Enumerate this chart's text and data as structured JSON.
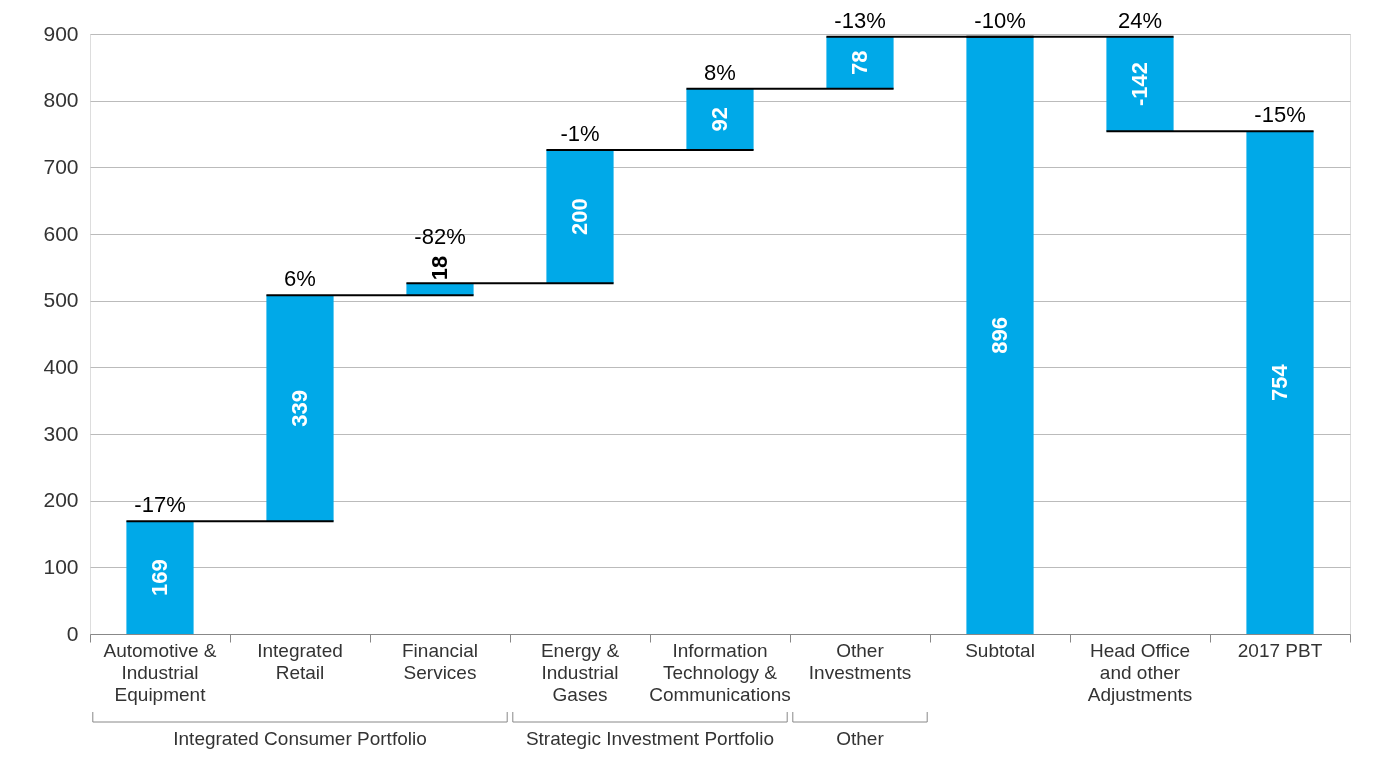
{
  "chart_data": {
    "type": "bar",
    "categories": [
      "Automotive & Industrial Equipment",
      "Integrated Retail",
      "Financial Services",
      "Energy & Industrial Gases",
      "Information Technology & Communications",
      "Other Investments",
      "Subtotal",
      "Head Office and other Adjustments",
      "2017 PBT"
    ],
    "values": [
      169,
      339,
      18,
      200,
      92,
      78,
      896,
      -142,
      754
    ],
    "base": [
      0,
      169,
      508,
      526,
      726,
      818,
      0,
      896,
      0
    ],
    "color": "#00a9e8",
    "data_labels": true,
    "ylim": [
      0,
      900
    ],
    "yticks": [
      0,
      100,
      200,
      300,
      400,
      500,
      600,
      700,
      800,
      900
    ],
    "grid": "y",
    "annotations": [
      {
        "text": "-17%",
        "x": "Automotive & Industrial Equipment",
        "y": 169
      },
      {
        "text": "6%",
        "x": "Integrated Retail",
        "y": 508
      },
      {
        "text": "-82%",
        "x": "Financial Services",
        "y": 526
      },
      {
        "text": "-1%",
        "x": "Energy & Industrial Gases",
        "y": 726
      },
      {
        "text": "8%",
        "x": "Information Technology & Communications",
        "y": 818
      },
      {
        "text": "-13%",
        "x": "Other Investments",
        "y": 896
      },
      {
        "text": "-10%",
        "x": "Subtotal",
        "y": 896
      },
      {
        "text": "24%",
        "x": "Head Office and other Adjustments",
        "y": 896
      },
      {
        "text": "-15%",
        "x": "2017 PBT",
        "y": 754
      },
      "Integrated Consumer Portfolio",
      "Strategic Investment Portfolio",
      "Other"
    ]
  }
}
